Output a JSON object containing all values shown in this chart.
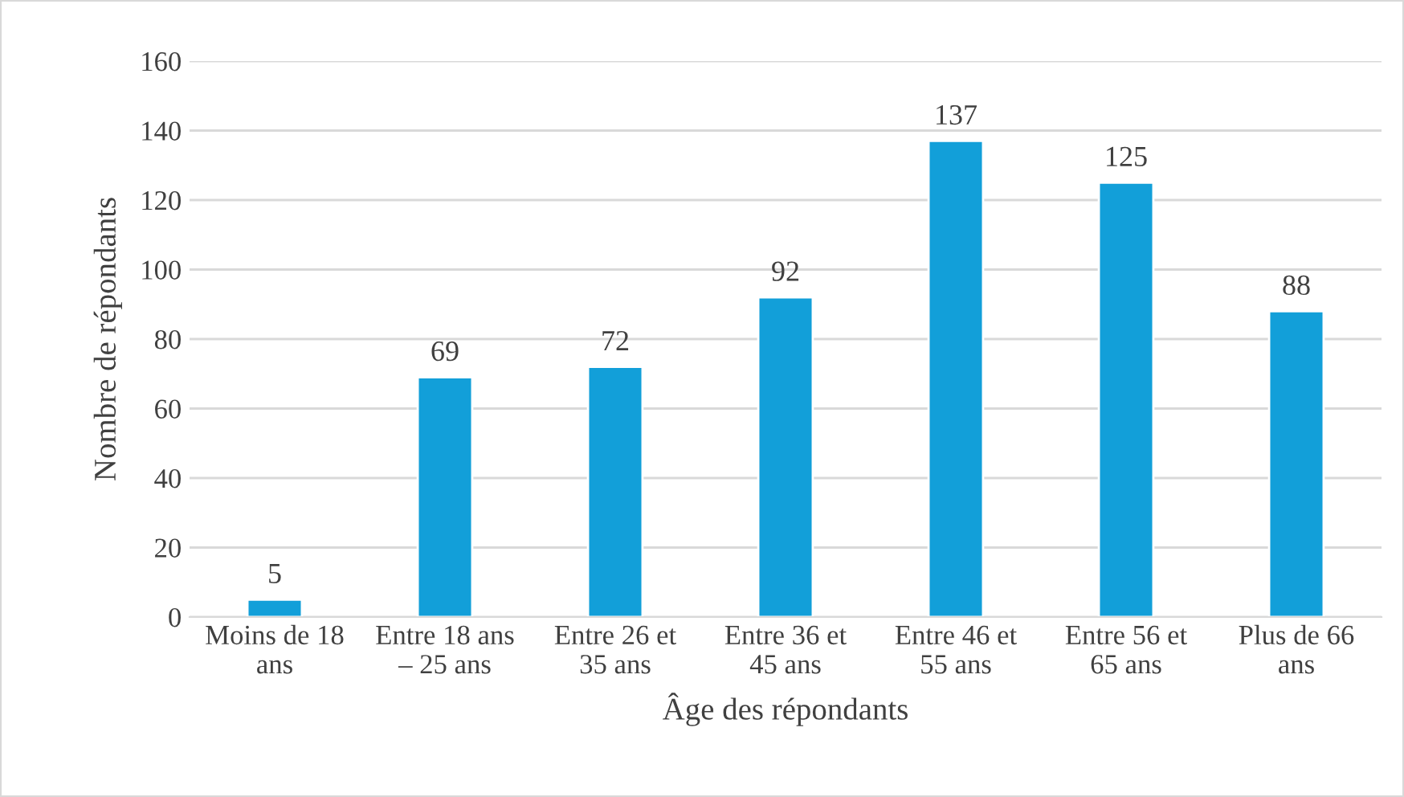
{
  "chart_data": {
    "type": "bar",
    "xlabel": "Âge des répondants",
    "ylabel": "Nombre de répondants",
    "categories": [
      "Moins de 18\nans",
      "Entre 18 ans\n– 25 ans",
      "Entre 26 et\n35 ans",
      "Entre 36 et\n45 ans",
      "Entre 46 et\n55 ans",
      "Entre 56 et\n65 ans",
      "Plus de 66\nans"
    ],
    "values": [
      5,
      69,
      72,
      92,
      137,
      125,
      88
    ],
    "color": "#129fd9",
    "ylim": [
      0,
      160
    ],
    "yticks": [
      0,
      20,
      40,
      60,
      80,
      100,
      120,
      140,
      160
    ],
    "grid": "y",
    "data_labels": true
  }
}
